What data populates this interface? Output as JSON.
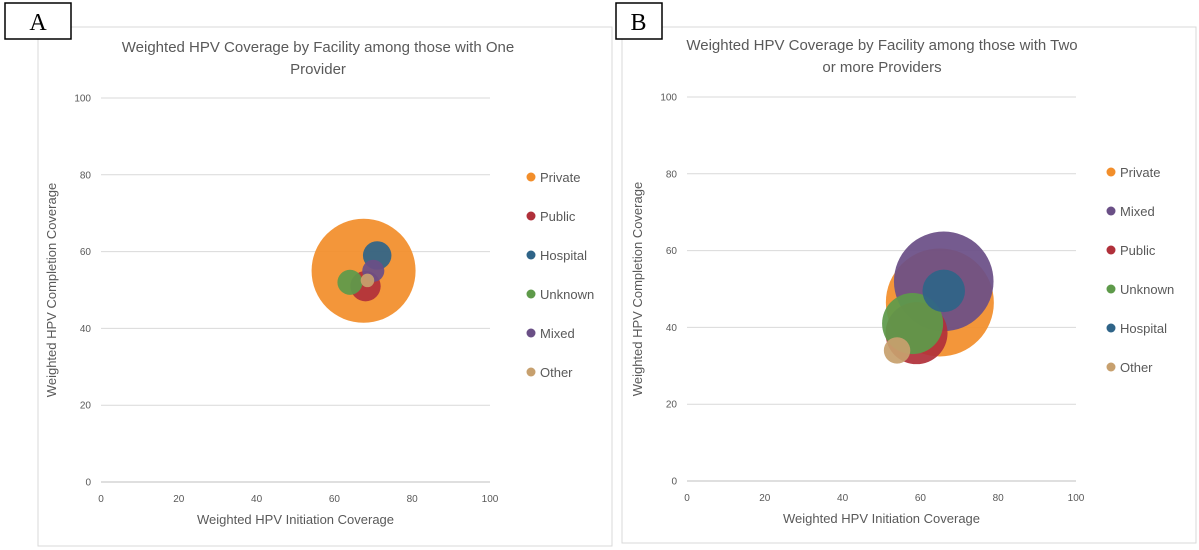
{
  "panels": [
    {
      "letter": "A"
    },
    {
      "letter": "B"
    }
  ],
  "colors": {
    "Private": "#f28e2b",
    "Public": "#b0303a",
    "Hospital": "#2f6488",
    "Unknown": "#5e9a4a",
    "Mixed": "#6a4f86",
    "Other": "#c7a06e"
  },
  "chart_data": [
    {
      "type": "scatter",
      "title": "Weighted HPV Coverage by Facility among those with One Provider",
      "title_lines": [
        "Weighted HPV Coverage by Facility among those with One",
        "Provider"
      ],
      "xlabel": "Weighted HPV Initiation Coverage",
      "ylabel": "Weighted HPV Completion Coverage",
      "xlim": [
        0,
        100
      ],
      "ylim": [
        0,
        100
      ],
      "xticks": [
        0,
        20,
        40,
        60,
        80,
        100
      ],
      "yticks": [
        0,
        20,
        40,
        60,
        80,
        100
      ],
      "grid": "horizontal",
      "legend_position": "right",
      "legend": [
        "Private",
        "Public",
        "Hospital",
        "Unknown",
        "Mixed",
        "Other"
      ],
      "series": [
        {
          "name": "Private",
          "x": 67.5,
          "y": 55.0,
          "size": 1.0
        },
        {
          "name": "Public",
          "x": 68.0,
          "y": 51.0,
          "size": 0.085
        },
        {
          "name": "Hospital",
          "x": 71.0,
          "y": 59.0,
          "size": 0.075
        },
        {
          "name": "Unknown",
          "x": 64.0,
          "y": 52.0,
          "size": 0.058
        },
        {
          "name": "Mixed",
          "x": 70.0,
          "y": 55.0,
          "size": 0.045
        },
        {
          "name": "Other",
          "x": 68.5,
          "y": 52.5,
          "size": 0.017
        }
      ]
    },
    {
      "type": "scatter",
      "title": "Weighted HPV Coverage by Facility among those with Two or more Providers",
      "title_lines": [
        "Weighted HPV Coverage by Facility among those with Two",
        "or more Providers"
      ],
      "xlabel": "Weighted HPV Initiation Coverage",
      "ylabel": "Weighted HPV Completion Coverage",
      "xlim": [
        0,
        100
      ],
      "ylim": [
        0,
        100
      ],
      "xticks": [
        0,
        20,
        40,
        60,
        80,
        100
      ],
      "yticks": [
        0,
        20,
        40,
        60,
        80,
        100
      ],
      "grid": "horizontal",
      "legend_position": "right",
      "legend": [
        "Private",
        "Mixed",
        "Public",
        "Unknown",
        "Hospital",
        "Other"
      ],
      "series": [
        {
          "name": "Private",
          "x": 65.0,
          "y": 46.5,
          "size": 1.0
        },
        {
          "name": "Mixed",
          "x": 66.0,
          "y": 52.0,
          "size": 0.85
        },
        {
          "name": "Public",
          "x": 59.0,
          "y": 38.5,
          "size": 0.33
        },
        {
          "name": "Unknown",
          "x": 58.0,
          "y": 41.0,
          "size": 0.32
        },
        {
          "name": "Hospital",
          "x": 66.0,
          "y": 49.5,
          "size": 0.155
        },
        {
          "name": "Other",
          "x": 54.0,
          "y": 34.0,
          "size": 0.06
        }
      ]
    }
  ]
}
